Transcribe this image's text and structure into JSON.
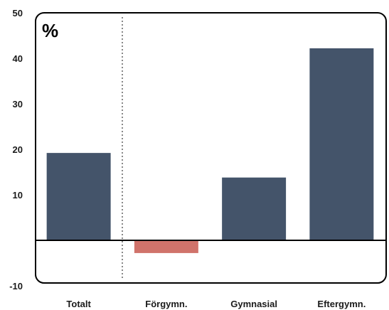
{
  "chart_data": {
    "type": "bar",
    "unit_label": "%",
    "categories": [
      "Totalt",
      "Förgymn.",
      "Gymnasial",
      "Eftergymn."
    ],
    "values": [
      19.2,
      -2.8,
      13.8,
      42.2
    ],
    "ylim": [
      -10,
      50
    ],
    "yticks": [
      -10,
      10,
      20,
      30,
      40,
      50
    ],
    "ytick_labels": [
      "-10",
      "10",
      "20",
      "30",
      "40",
      "50"
    ],
    "grid": false,
    "colors": {
      "positive": "#44546a",
      "negative": "#d0736b",
      "separator": "#888888"
    }
  }
}
